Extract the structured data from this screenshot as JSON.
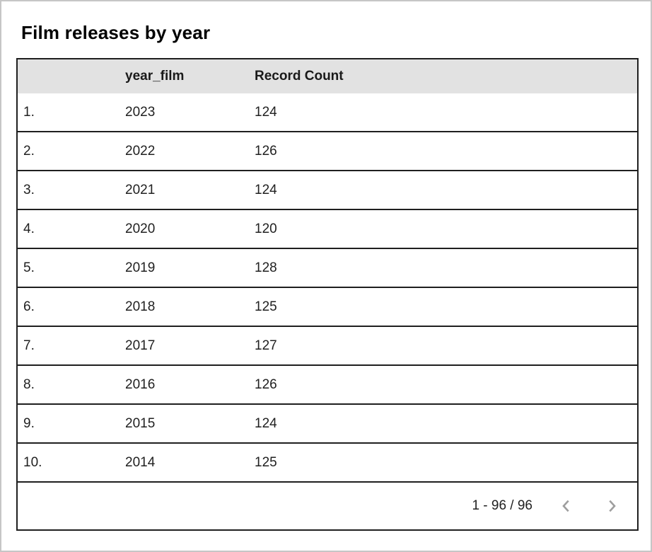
{
  "page": {
    "title": "Film releases by year"
  },
  "table": {
    "columns": [
      "",
      "year_film",
      "Record Count"
    ],
    "rows": [
      {
        "index": "1.",
        "year_film": "2023",
        "record_count": "124"
      },
      {
        "index": "2.",
        "year_film": "2022",
        "record_count": "126"
      },
      {
        "index": "3.",
        "year_film": "2021",
        "record_count": "124"
      },
      {
        "index": "4.",
        "year_film": "2020",
        "record_count": "120"
      },
      {
        "index": "5.",
        "year_film": "2019",
        "record_count": "128"
      },
      {
        "index": "6.",
        "year_film": "2018",
        "record_count": "125"
      },
      {
        "index": "7.",
        "year_film": "2017",
        "record_count": "127"
      },
      {
        "index": "8.",
        "year_film": "2016",
        "record_count": "126"
      },
      {
        "index": "9.",
        "year_film": "2015",
        "record_count": "124"
      },
      {
        "index": "10.",
        "year_film": "2014",
        "record_count": "125"
      }
    ]
  },
  "pagination": {
    "range_label": "1 - 96 / 96",
    "prev_icon": "chevron-left",
    "next_icon": "chevron-right"
  },
  "chart_data": {
    "type": "table",
    "title": "Film releases by year",
    "columns": [
      "year_film",
      "Record Count"
    ],
    "rows": [
      [
        2023,
        124
      ],
      [
        2022,
        126
      ],
      [
        2021,
        124
      ],
      [
        2020,
        120
      ],
      [
        2019,
        128
      ],
      [
        2018,
        125
      ],
      [
        2017,
        127
      ],
      [
        2016,
        126
      ],
      [
        2015,
        124
      ],
      [
        2014,
        125
      ]
    ]
  },
  "colors": {
    "header_bg": "#e2e2e2",
    "table_border": "#1f1f1f",
    "text": "#212121",
    "chevron": "#9e9e9e",
    "outer_border": "#c6c6c6"
  }
}
